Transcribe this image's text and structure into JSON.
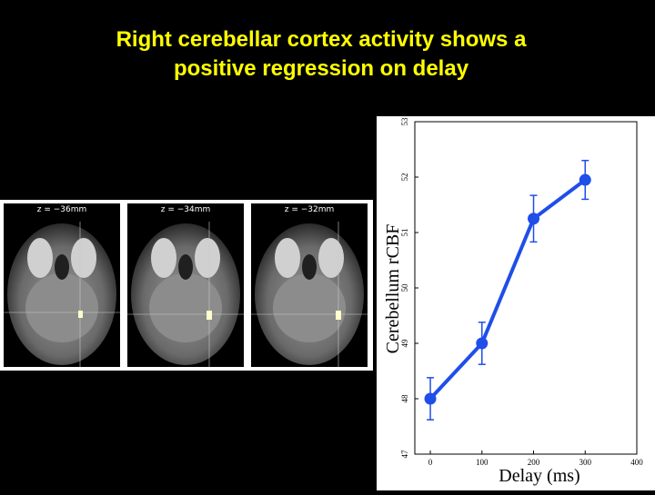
{
  "slide": {
    "title_line1": "Right cerebellar cortex activity shows a",
    "title_line2": "positive regression on delay",
    "title_color": "#ffff00",
    "background": "#000000"
  },
  "brain_slices": [
    {
      "label": "z = −36mm"
    },
    {
      "label": "z = −34mm"
    },
    {
      "label": "z = −32mm"
    }
  ],
  "chart_data": {
    "type": "line",
    "title": "",
    "xlabel": "Delay (ms)",
    "ylabel": "Cerebellum rCBF",
    "xlim": [
      -30,
      400
    ],
    "ylim": [
      47,
      53
    ],
    "xticks": [
      0,
      100,
      200,
      300,
      400
    ],
    "yticks": [
      47,
      48,
      49,
      50,
      51,
      52,
      53
    ],
    "ytick_labels": [
      "47",
      "48",
      "49",
      "50",
      "51",
      "52",
      "53"
    ],
    "series": [
      {
        "x": [
          0,
          100,
          200,
          300
        ],
        "y": [
          48.0,
          49.0,
          51.25,
          51.95
        ],
        "err": [
          0.38,
          0.38,
          0.42,
          0.35
        ],
        "color": "#1f4ee8"
      }
    ],
    "grid": false
  }
}
